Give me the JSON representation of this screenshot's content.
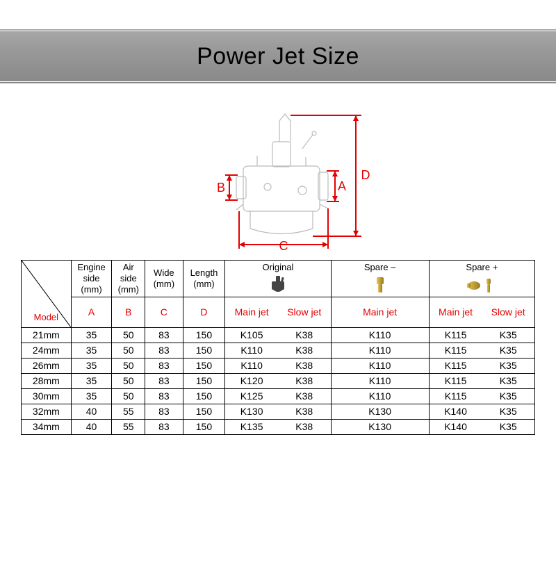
{
  "title": "Power Jet Size",
  "diagram": {
    "line_color": "#e30000",
    "line_width": 2,
    "labels": {
      "A": "A",
      "B": "B",
      "C": "C",
      "D": "D"
    },
    "label_fontsize": 18,
    "body_stroke": "#bbbbbb"
  },
  "table": {
    "colors": {
      "red": "#e30000",
      "border": "#000000"
    },
    "font_size": 14,
    "headers_top": {
      "engine": "Engine side (mm)",
      "air": "Air side (mm)",
      "wide": "Wide (mm)",
      "length": "Length (mm)",
      "original": "Original",
      "spare_minus": "Spare –",
      "spare_plus": "Spare +"
    },
    "headers_sub": {
      "model": "Model",
      "A": "A",
      "B": "B",
      "C": "C",
      "D": "D",
      "main_jet": "Main jet",
      "slow_jet": "Slow jet"
    },
    "jet_icon_colors": {
      "carb_body": "#444444",
      "brass": "#c9a227",
      "brass_highlight": "#e6c35c"
    },
    "rows": [
      {
        "model": "21mm",
        "A": "35",
        "B": "50",
        "C": "83",
        "D": "150",
        "orig_main": "K105",
        "orig_slow": "K38",
        "sm_main": "K110",
        "sp_main": "K115",
        "sp_slow": "K35"
      },
      {
        "model": "24mm",
        "A": "35",
        "B": "50",
        "C": "83",
        "D": "150",
        "orig_main": "K110",
        "orig_slow": "K38",
        "sm_main": "K110",
        "sp_main": "K115",
        "sp_slow": "K35"
      },
      {
        "model": "26mm",
        "A": "35",
        "B": "50",
        "C": "83",
        "D": "150",
        "orig_main": "K110",
        "orig_slow": "K38",
        "sm_main": "K110",
        "sp_main": "K115",
        "sp_slow": "K35"
      },
      {
        "model": "28mm",
        "A": "35",
        "B": "50",
        "C": "83",
        "D": "150",
        "orig_main": "K120",
        "orig_slow": "K38",
        "sm_main": "K110",
        "sp_main": "K115",
        "sp_slow": "K35"
      },
      {
        "model": "30mm",
        "A": "35",
        "B": "50",
        "C": "83",
        "D": "150",
        "orig_main": "K125",
        "orig_slow": "K38",
        "sm_main": "K110",
        "sp_main": "K115",
        "sp_slow": "K35"
      },
      {
        "model": "32mm",
        "A": "40",
        "B": "55",
        "C": "83",
        "D": "150",
        "orig_main": "K130",
        "orig_slow": "K38",
        "sm_main": "K130",
        "sp_main": "K140",
        "sp_slow": "K35"
      },
      {
        "model": "34mm",
        "A": "40",
        "B": "55",
        "C": "83",
        "D": "150",
        "orig_main": "K135",
        "orig_slow": "K38",
        "sm_main": "K130",
        "sp_main": "K140",
        "sp_slow": "K35"
      }
    ]
  }
}
